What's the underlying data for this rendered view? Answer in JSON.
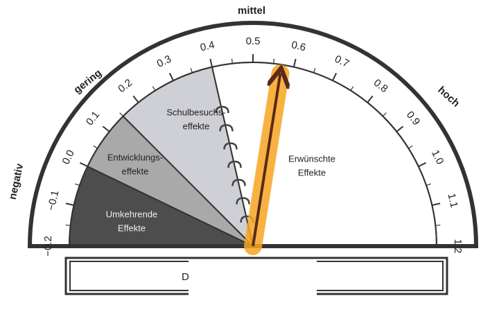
{
  "labels": {
    "top": "mittel",
    "left": "gering",
    "right": "hoch",
    "far_left": "negativ"
  },
  "scale": {
    "min": -0.2,
    "max": 1.2,
    "ticks": [
      {
        "value": -0.2,
        "label": "−0.2"
      },
      {
        "value": -0.1,
        "label": "−0.1"
      },
      {
        "value": 0,
        "label": "0.0"
      },
      0.1,
      0.2,
      0.3,
      0.4,
      0.5,
      0.6,
      0.7,
      0.8,
      0.9,
      {
        "value": 1,
        "label": "1.0"
      },
      1.1,
      1.2
    ]
  },
  "zones": [
    {
      "lines": [
        "Umkehrende",
        "Effekte"
      ],
      "from": -0.2,
      "to": 0,
      "color": "#4d4d4d"
    },
    {
      "lines": [
        "Entwicklungs-",
        "effekte"
      ],
      "from": 0,
      "to": 0.15,
      "color": "#a9a9a9"
    },
    {
      "lines": [
        "Schulbesuchs-",
        "effekte"
      ],
      "from": 0.15,
      "to": 0.4,
      "color": "#cfcfd6"
    },
    {
      "lines": [
        "Erwünschte",
        "Effekte"
      ],
      "from": 0.4,
      "to": 1.2,
      "color": "#ffffff"
    }
  ],
  "pointer": 0.57,
  "footer": "D"
}
